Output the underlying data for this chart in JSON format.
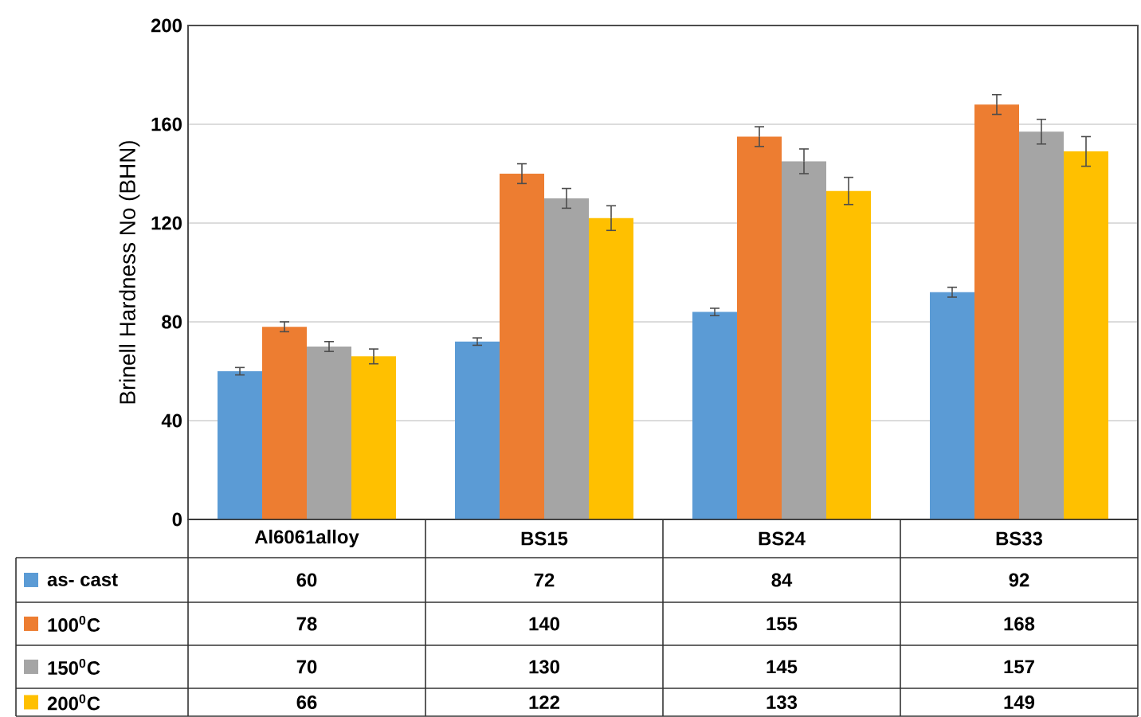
{
  "chart_data": {
    "type": "bar",
    "ylabel": "Brinell Hardness No (BHN)",
    "categories": [
      "Al6061alloy",
      "BS15",
      "BS24",
      "BS33"
    ],
    "series": [
      {
        "name": "as- cast",
        "color": "#5b9bd5",
        "values": [
          60,
          72,
          84,
          92
        ],
        "errors": [
          1.5,
          1.5,
          1.5,
          2
        ]
      },
      {
        "name": "100$^{0}$C",
        "color": "#ed7d31",
        "values": [
          78,
          140,
          155,
          168
        ],
        "errors": [
          2,
          4,
          4,
          4
        ]
      },
      {
        "name": "150$^{0}$C",
        "color": "#a5a5a5",
        "values": [
          70,
          130,
          145,
          157
        ],
        "errors": [
          2,
          4,
          5,
          5
        ]
      },
      {
        "name": "200$^{0}$C",
        "color": "#ffc000",
        "values": [
          66,
          122,
          133,
          149
        ],
        "errors": [
          3,
          5,
          5.5,
          6
        ]
      }
    ],
    "ylim": [
      0,
      200
    ],
    "yticks": [
      0,
      40,
      80,
      120,
      160,
      200
    ],
    "grid": "y",
    "data_labels": true,
    "legend": "bottom"
  }
}
